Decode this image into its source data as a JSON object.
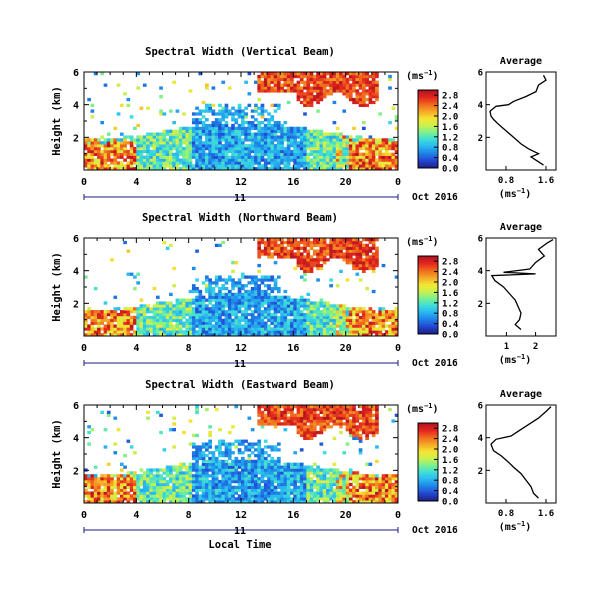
{
  "figure": {
    "xlabel": "Local Time",
    "date_label": "Oct 2016",
    "day_label": "11",
    "unit_label": "(ms",
    "unit_sup": "−1",
    "unit_close": ")",
    "ylabel": "Height (km)",
    "avg_title": "Average",
    "avg_xlabel": "(ms",
    "avg_xlabel_sup": "−1",
    "avg_xlabel_close": ")"
  },
  "colorscale": {
    "stops": [
      "#1e1e82",
      "#2346d2",
      "#1e7fe6",
      "#28b4f0",
      "#3cdcdc",
      "#78f090",
      "#c8f050",
      "#f5e632",
      "#f5aa28",
      "#f06e1e",
      "#e6281e",
      "#b4141e"
    ],
    "missing_color": "#ffffff"
  },
  "chart_data": [
    {
      "type": "heatmap",
      "title": "Spectral Width (Vertical Beam)",
      "colorbar": {
        "ticks": [
          "0.0",
          "0.4",
          "0.8",
          "1.2",
          "1.6",
          "2.0",
          "2.4",
          "2.8"
        ],
        "range": [
          0,
          3.0
        ]
      },
      "x": {
        "ticks": [
          "0",
          "4",
          "8",
          "12",
          "16",
          "20",
          "0"
        ],
        "range": [
          0,
          24
        ],
        "unit": "hour"
      },
      "y": {
        "ticks": [
          "2",
          "4",
          "6"
        ],
        "range": [
          0,
          6
        ],
        "unit": "km"
      },
      "avg_profile": {
        "xticks": [
          "0.8",
          "1.6"
        ],
        "xrange": [
          0.4,
          1.8
        ],
        "points": [
          [
            1.55,
            0.3
          ],
          [
            1.4,
            0.6
          ],
          [
            1.3,
            0.8
          ],
          [
            1.45,
            1.0
          ],
          [
            1.25,
            1.3
          ],
          [
            1.1,
            1.6
          ],
          [
            0.95,
            2.0
          ],
          [
            0.8,
            2.4
          ],
          [
            0.65,
            2.8
          ],
          [
            0.55,
            3.1
          ],
          [
            0.5,
            3.3
          ],
          [
            0.48,
            3.6
          ],
          [
            0.6,
            3.9
          ],
          [
            0.85,
            4.0
          ],
          [
            0.95,
            4.2
          ],
          [
            1.2,
            4.5
          ],
          [
            1.4,
            4.8
          ],
          [
            1.45,
            5.2
          ],
          [
            1.6,
            5.5
          ],
          [
            1.55,
            5.8
          ]
        ]
      }
    },
    {
      "type": "heatmap",
      "title": "Spectral Width (Northward Beam)",
      "colorbar": {
        "ticks": [
          "0.0",
          "0.4",
          "0.8",
          "1.2",
          "1.6",
          "2.0",
          "2.4",
          "2.8"
        ],
        "range": [
          0,
          3.0
        ]
      },
      "x": {
        "ticks": [
          "0",
          "4",
          "8",
          "12",
          "16",
          "20",
          "0"
        ],
        "range": [
          0,
          24
        ],
        "unit": "hour"
      },
      "y": {
        "ticks": [
          "2",
          "4",
          "6"
        ],
        "range": [
          0,
          6
        ],
        "unit": "km"
      },
      "avg_profile": {
        "xticks": [
          "1",
          "2"
        ],
        "xrange": [
          0.3,
          2.7
        ],
        "points": [
          [
            1.5,
            0.4
          ],
          [
            1.3,
            0.7
          ],
          [
            1.45,
            1.0
          ],
          [
            1.5,
            1.4
          ],
          [
            1.4,
            1.8
          ],
          [
            1.3,
            2.2
          ],
          [
            1.1,
            2.6
          ],
          [
            0.9,
            3.0
          ],
          [
            0.6,
            3.4
          ],
          [
            0.5,
            3.7
          ],
          [
            2.0,
            3.8
          ],
          [
            0.9,
            3.9
          ],
          [
            1.8,
            4.1
          ],
          [
            2.0,
            4.5
          ],
          [
            2.3,
            4.9
          ],
          [
            2.1,
            5.3
          ],
          [
            2.4,
            5.7
          ],
          [
            2.6,
            5.9
          ]
        ]
      }
    },
    {
      "type": "heatmap",
      "title": "Spectral Width (Eastward Beam)",
      "colorbar": {
        "ticks": [
          "0.0",
          "0.4",
          "0.8",
          "1.2",
          "1.6",
          "2.0",
          "2.4",
          "2.8"
        ],
        "range": [
          0,
          3.0
        ]
      },
      "x": {
        "ticks": [
          "0",
          "4",
          "8",
          "12",
          "16",
          "20",
          "0"
        ],
        "range": [
          0,
          24
        ],
        "unit": "hour"
      },
      "y": {
        "ticks": [
          "2",
          "4",
          "6"
        ],
        "range": [
          0,
          6
        ],
        "unit": "km"
      },
      "avg_profile": {
        "xticks": [
          "0.8",
          "1.6"
        ],
        "xrange": [
          0.4,
          1.8
        ],
        "points": [
          [
            1.45,
            0.3
          ],
          [
            1.35,
            0.6
          ],
          [
            1.3,
            1.0
          ],
          [
            1.2,
            1.4
          ],
          [
            1.1,
            1.8
          ],
          [
            0.95,
            2.2
          ],
          [
            0.85,
            2.5
          ],
          [
            0.7,
            2.9
          ],
          [
            0.55,
            3.2
          ],
          [
            0.5,
            3.6
          ],
          [
            0.6,
            3.9
          ],
          [
            0.9,
            4.1
          ],
          [
            1.05,
            4.4
          ],
          [
            1.25,
            4.8
          ],
          [
            1.45,
            5.2
          ],
          [
            1.6,
            5.6
          ],
          [
            1.7,
            5.9
          ]
        ]
      }
    }
  ]
}
